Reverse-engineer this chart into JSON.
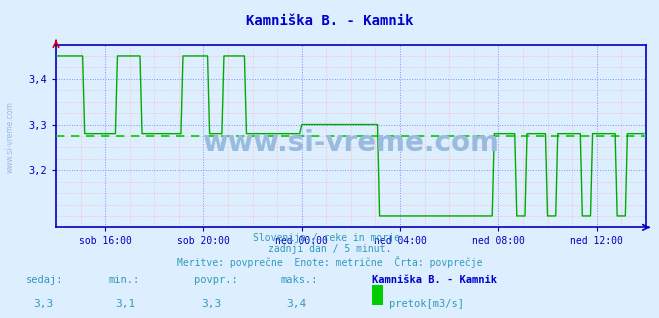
{
  "title": "Kamniška B. - Kamnik",
  "bg_color": "#ddeeff",
  "plot_bg_color": "#ddeeff",
  "line_color": "#00aa00",
  "avg_line_color": "#00cc00",
  "axis_color": "#0000bb",
  "grid_color_major": "#8888ff",
  "grid_color_minor": "#ffaaaa",
  "text_color": "#3399bb",
  "title_color": "#0000cc",
  "watermark": "www.si-vreme.com",
  "watermark_color": "#99bbdd",
  "subtitle1": "Slovenija / reke in morje.",
  "subtitle2": "zadnji dan / 5 minut.",
  "subtitle3": "Meritve: povprečne  Enote: metrične  Črta: povprečje",
  "footer_label1": "sedaj:",
  "footer_val1": "3,3",
  "footer_label2": "min.:",
  "footer_val2": "3,1",
  "footer_label3": "povpr.:",
  "footer_val3": "3,3",
  "footer_label4": "maks.:",
  "footer_val4": "3,4",
  "footer_station": "Kamniška B. - Kamnik",
  "footer_legend": "pretok[m3/s]",
  "legend_color": "#00cc00",
  "xtick_labels": [
    "sob 16:00",
    "sob 20:00",
    "ned 00:00",
    "ned 04:00",
    "ned 08:00",
    "ned 12:00"
  ],
  "xtick_positions": [
    24,
    72,
    120,
    168,
    216,
    264
  ],
  "ytick_labels": [
    "3,2",
    "3,3",
    "3,4"
  ],
  "ytick_positions": [
    3.2,
    3.3,
    3.4
  ],
  "ylim": [
    3.075,
    3.475
  ],
  "xlim": [
    0,
    288
  ],
  "avg_value": 3.275,
  "n_points": 288,
  "spike_high": 3.45,
  "base_high": 3.28,
  "base_low": 3.1
}
